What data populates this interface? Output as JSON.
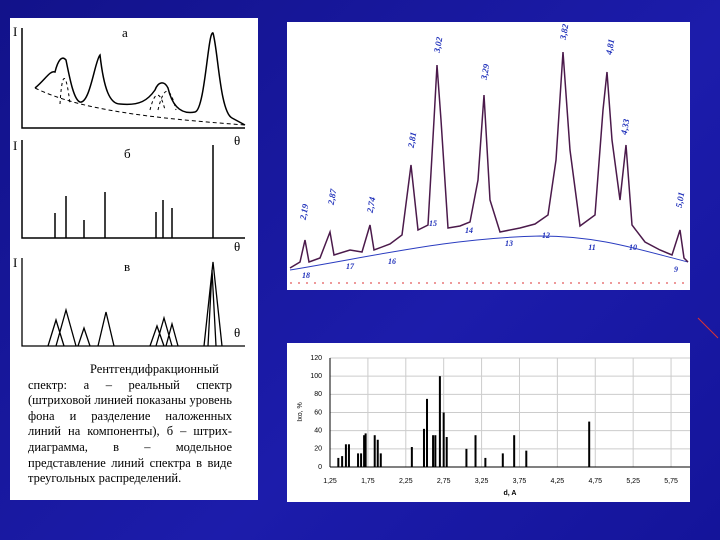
{
  "left_panel": {
    "plot_a": {
      "axis_y": "I",
      "label": "а",
      "axis_x": "θ"
    },
    "plot_b": {
      "axis_y": "I",
      "label": "б",
      "axis_x": "θ"
    },
    "plot_c": {
      "axis_y": "I",
      "label": "в",
      "axis_x": "θ"
    },
    "caption": "Рентгендифракционный спектр: а – реальный спектр (штриховой линией показаны уровень фона и разделение наложенных линий на компоненты), б – штрих-диаграмма, в – модельное представление линий спектра в виде треугольных распределений."
  },
  "xrd_panel": {
    "peak_labels": [
      "2,19",
      "2,87",
      "2,74",
      "2,81",
      "3,02",
      "3,29",
      "3,82",
      "4,81",
      "4,33",
      "5,01"
    ],
    "markers": [
      "18",
      "17",
      "16",
      "15",
      "14",
      "13",
      "12",
      "11",
      "10",
      "9"
    ]
  },
  "chart_data": {
    "type": "bar",
    "x_label": "d, A",
    "y_label": "Ixo, %",
    "color": "#000000",
    "grid": true,
    "x": [
      1.36,
      1.41,
      1.46,
      1.5,
      1.62,
      1.66,
      1.7,
      1.72,
      1.84,
      1.88,
      1.92,
      2.33,
      2.49,
      2.53,
      2.61,
      2.64,
      2.7,
      2.75,
      2.79,
      3.05,
      3.17,
      3.3,
      3.53,
      3.68,
      3.84,
      4.67
    ],
    "values": [
      10,
      12,
      25,
      25,
      15,
      15,
      35,
      37,
      35,
      30,
      15,
      22,
      42,
      75,
      35,
      35,
      100,
      60,
      33,
      20,
      35,
      10,
      15,
      35,
      18,
      50
    ],
    "xlim": [
      1.25,
      6.0
    ],
    "ylim": [
      0,
      120
    ],
    "xticks": [
      {
        "value": 1.25,
        "label": "1,25"
      },
      {
        "value": 1.75,
        "label": "1,75"
      },
      {
        "value": 2.25,
        "label": "2,25"
      },
      {
        "value": 2.75,
        "label": "2,75"
      },
      {
        "value": 3.25,
        "label": "3,25"
      },
      {
        "value": 3.75,
        "label": "3,75"
      },
      {
        "value": 4.25,
        "label": "4,25"
      },
      {
        "value": 4.75,
        "label": "4,75"
      },
      {
        "value": 5.25,
        "label": "5,25"
      },
      {
        "value": 5.75,
        "label": "5,75"
      }
    ],
    "yticks": [
      0,
      20,
      40,
      60,
      80,
      100,
      120
    ]
  }
}
